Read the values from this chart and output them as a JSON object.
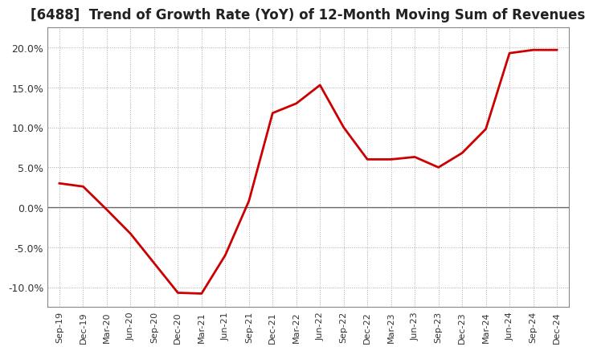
{
  "title": "[6488]  Trend of Growth Rate (YoY) of 12-Month Moving Sum of Revenues",
  "title_fontsize": 12,
  "line_color": "#cc0000",
  "background_color": "#ffffff",
  "grid_color": "#aaaaaa",
  "ylim": [
    -0.125,
    0.225
  ],
  "yticks": [
    -0.1,
    -0.05,
    0.0,
    0.05,
    0.1,
    0.15,
    0.2
  ],
  "x_labels": [
    "Sep-19",
    "Dec-19",
    "Mar-20",
    "Jun-20",
    "Sep-20",
    "Dec-20",
    "Mar-21",
    "Jun-21",
    "Sep-21",
    "Dec-21",
    "Mar-22",
    "Jun-22",
    "Sep-22",
    "Dec-22",
    "Mar-23",
    "Jun-23",
    "Sep-23",
    "Dec-23",
    "Mar-24",
    "Jun-24",
    "Sep-24",
    "Dec-24"
  ],
  "y_values": [
    0.03,
    0.026,
    -0.003,
    -0.033,
    -0.07,
    -0.107,
    -0.108,
    -0.06,
    0.008,
    0.118,
    0.13,
    0.153,
    0.1,
    0.06,
    0.06,
    0.063,
    0.05,
    0.068,
    0.098,
    0.193,
    0.197,
    0.197
  ]
}
